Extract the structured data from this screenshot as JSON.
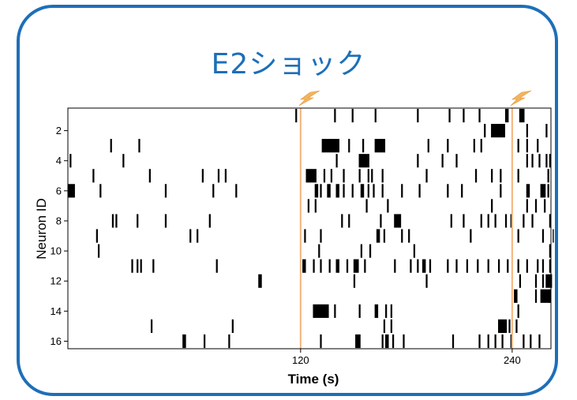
{
  "title": "E2ショック",
  "colors": {
    "frame": "#1d6fb8",
    "title": "#1d6fb8",
    "event_line": "#f5b47a",
    "spike": "#000000"
  },
  "icons": {
    "event_marker": "lightning-bolt-icon"
  },
  "chart_data": {
    "type": "raster",
    "xlabel": "Time (s)",
    "ylabel": "Neuron ID",
    "xlim": [
      -12,
      262
    ],
    "ylim": [
      0.5,
      16.5
    ],
    "x_ticks": [
      120,
      240
    ],
    "y_ticks": [
      2,
      4,
      6,
      8,
      10,
      12,
      14,
      16
    ],
    "grid": false,
    "events": [
      {
        "time": 120,
        "label": "shock"
      },
      {
        "time": 240,
        "label": "shock"
      }
    ],
    "series": [
      {
        "neuron": 1,
        "spikes": [
          [
            117,
            1
          ],
          [
            139,
            1
          ],
          [
            149,
            1
          ],
          [
            162,
            1
          ],
          [
            186,
            1
          ],
          [
            204,
            1
          ],
          [
            212,
            1
          ],
          [
            221,
            1
          ],
          [
            236,
            1
          ],
          [
            237,
            1
          ],
          [
            244,
            3
          ]
        ]
      },
      {
        "neuron": 2,
        "spikes": [
          [
            224,
            1
          ],
          [
            228,
            8
          ],
          [
            248,
            1
          ],
          [
            259,
            1
          ]
        ]
      },
      {
        "neuron": 3,
        "spikes": [
          [
            12,
            1
          ],
          [
            28,
            1
          ],
          [
            132,
            10
          ],
          [
            147,
            1
          ],
          [
            155,
            1
          ],
          [
            162,
            6
          ],
          [
            192,
            1
          ],
          [
            203,
            1
          ],
          [
            218,
            1
          ],
          [
            222,
            1
          ],
          [
            243,
            1
          ],
          [
            248,
            1
          ],
          [
            254,
            1
          ]
        ]
      },
      {
        "neuron": 4,
        "spikes": [
          [
            -11,
            1
          ],
          [
            19,
            1
          ],
          [
            140,
            1
          ],
          [
            153,
            6
          ],
          [
            186,
            1
          ],
          [
            200,
            1
          ],
          [
            208,
            1
          ],
          [
            248,
            1
          ],
          [
            251,
            1
          ],
          [
            255,
            1
          ],
          [
            259,
            1
          ],
          [
            261,
            1
          ]
        ]
      },
      {
        "neuron": 5,
        "spikes": [
          [
            2,
            1
          ],
          [
            34,
            1
          ],
          [
            64,
            1
          ],
          [
            73,
            1
          ],
          [
            77,
            1
          ],
          [
            123,
            6
          ],
          [
            133,
            1
          ],
          [
            137,
            1
          ],
          [
            144,
            1
          ],
          [
            153,
            1
          ],
          [
            158,
            1
          ],
          [
            160,
            1
          ],
          [
            166,
            1
          ],
          [
            191,
            1
          ],
          [
            219,
            1
          ],
          [
            228,
            1
          ],
          [
            233,
            1
          ],
          [
            243,
            1
          ],
          [
            260,
            1
          ]
        ]
      },
      {
        "neuron": 6,
        "spikes": [
          [
            -12,
            4
          ],
          [
            6,
            1
          ],
          [
            43,
            1
          ],
          [
            70,
            1
          ],
          [
            83,
            1
          ],
          [
            128,
            2
          ],
          [
            131,
            1
          ],
          [
            135,
            2
          ],
          [
            140,
            2
          ],
          [
            144,
            1
          ],
          [
            149,
            1
          ],
          [
            154,
            2
          ],
          [
            158,
            1
          ],
          [
            161,
            1
          ],
          [
            166,
            1
          ],
          [
            177,
            1
          ],
          [
            187,
            1
          ],
          [
            203,
            1
          ],
          [
            211,
            1
          ],
          [
            233,
            1
          ],
          [
            248,
            2
          ],
          [
            256,
            3
          ],
          [
            260,
            1
          ]
        ]
      },
      {
        "neuron": 7,
        "spikes": [
          [
            124,
            1
          ],
          [
            128,
            1
          ],
          [
            157,
            1
          ],
          [
            169,
            1
          ],
          [
            228,
            1
          ],
          [
            248,
            1
          ],
          [
            253,
            1
          ],
          [
            258,
            1
          ]
        ]
      },
      {
        "neuron": 8,
        "spikes": [
          [
            13,
            1
          ],
          [
            15,
            1
          ],
          [
            27,
            1
          ],
          [
            43,
            1
          ],
          [
            68,
            1
          ],
          [
            143,
            1
          ],
          [
            147,
            1
          ],
          [
            165,
            1
          ],
          [
            173,
            4
          ],
          [
            205,
            1
          ],
          [
            212,
            1
          ],
          [
            222,
            1
          ],
          [
            226,
            1
          ],
          [
            230,
            1
          ],
          [
            236,
            1
          ],
          [
            239,
            1
          ],
          [
            246,
            1
          ],
          [
            251,
            1
          ],
          [
            261,
            1
          ]
        ]
      },
      {
        "neuron": 9,
        "spikes": [
          [
            4,
            1
          ],
          [
            57,
            1
          ],
          [
            61,
            1
          ],
          [
            122,
            1
          ],
          [
            131,
            1
          ],
          [
            163,
            2
          ],
          [
            167,
            1
          ],
          [
            177,
            1
          ],
          [
            181,
            1
          ],
          [
            216,
            1
          ],
          [
            243,
            1
          ],
          [
            257,
            1
          ],
          [
            263,
            1
          ]
        ]
      },
      {
        "neuron": 10,
        "spikes": [
          [
            5,
            1
          ],
          [
            130,
            1
          ],
          [
            154,
            1
          ],
          [
            159,
            1
          ],
          [
            184,
            1
          ],
          [
            261,
            1
          ]
        ]
      },
      {
        "neuron": 11,
        "spikes": [
          [
            24,
            1
          ],
          [
            27,
            1
          ],
          [
            29,
            1
          ],
          [
            36,
            1
          ],
          [
            72,
            1
          ],
          [
            121,
            2
          ],
          [
            127,
            1
          ],
          [
            131,
            1
          ],
          [
            136,
            1
          ],
          [
            140,
            2
          ],
          [
            146,
            1
          ],
          [
            150,
            3
          ],
          [
            156,
            1
          ],
          [
            173,
            1
          ],
          [
            182,
            1
          ],
          [
            186,
            1
          ],
          [
            189,
            2
          ],
          [
            193,
            1
          ],
          [
            203,
            1
          ],
          [
            208,
            1
          ],
          [
            214,
            1
          ],
          [
            220,
            1
          ],
          [
            226,
            1
          ],
          [
            232,
            1
          ],
          [
            237,
            1
          ],
          [
            243,
            1
          ],
          [
            248,
            1
          ],
          [
            254,
            1
          ],
          [
            257,
            1
          ],
          [
            261,
            1
          ]
        ]
      },
      {
        "neuron": 12,
        "spikes": [
          [
            96,
            2
          ],
          [
            150,
            1
          ],
          [
            191,
            1
          ],
          [
            244,
            1
          ],
          [
            253,
            1
          ],
          [
            257,
            1
          ],
          [
            259,
            4
          ],
          [
            262,
            1
          ]
        ]
      },
      {
        "neuron": 13,
        "spikes": [
          [
            241,
            2
          ],
          [
            253,
            1
          ],
          [
            256,
            6
          ],
          [
            261,
            1
          ]
        ]
      },
      {
        "neuron": 14,
        "spikes": [
          [
            127,
            9
          ],
          [
            139,
            1
          ],
          [
            153,
            1
          ],
          [
            162,
            2
          ],
          [
            168,
            1
          ],
          [
            171,
            1
          ],
          [
            243,
            1
          ]
        ]
      },
      {
        "neuron": 15,
        "spikes": [
          [
            35,
            1
          ],
          [
            81,
            1
          ],
          [
            167,
            1
          ],
          [
            171,
            1
          ],
          [
            232,
            5
          ],
          [
            238,
            1
          ],
          [
            242,
            1
          ]
        ]
      },
      {
        "neuron": 16,
        "spikes": [
          [
            53,
            2
          ],
          [
            65,
            1
          ],
          [
            79,
            1
          ],
          [
            131,
            1
          ],
          [
            151,
            3
          ],
          [
            166,
            1
          ],
          [
            168,
            2
          ],
          [
            172,
            1
          ],
          [
            178,
            1
          ],
          [
            206,
            1
          ],
          [
            221,
            1
          ],
          [
            226,
            1
          ],
          [
            230,
            1
          ],
          [
            234,
            1
          ],
          [
            239,
            1
          ],
          [
            246,
            1
          ],
          [
            250,
            1
          ],
          [
            255,
            1
          ]
        ]
      }
    ]
  }
}
